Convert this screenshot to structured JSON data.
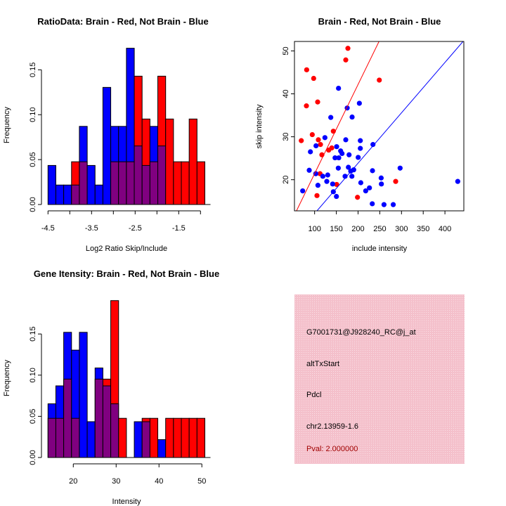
{
  "colors": {
    "blue": "#0000ff",
    "red": "#ff0000",
    "overlap": "#800080",
    "panel": "#f6c4cf",
    "pval": "#a00000"
  },
  "chart_data": [
    {
      "type": "bar",
      "title": "RatioData: Brain - Red, Not Brain - Blue",
      "xlabel": "Log2 Ratio Skip/Include",
      "ylabel": "Frequency",
      "xlim": [
        -4.5,
        -0.9
      ],
      "ylim": [
        0,
        0.175
      ],
      "xticks": [
        -4.5,
        -4.0,
        -3.5,
        -3.0,
        -2.5,
        -2.0,
        -1.5,
        -1.0
      ],
      "xtick_labels": [
        "-4.5",
        "",
        "-3.5",
        "",
        "-2.5",
        "",
        "-1.5",
        ""
      ],
      "yticks": [
        0,
        0.05,
        0.1,
        0.15
      ],
      "ytick_labels": [
        "0.00",
        "0.05",
        "0.10",
        "0.15"
      ],
      "series": [
        {
          "name": "Not Brain",
          "color": "blue",
          "values": [
            0.0435,
            0.0217,
            0.0217,
            0.0217,
            0.087,
            0.0435,
            0.0217,
            0.1304,
            0.087,
            0.087,
            0.174,
            0.0652,
            0.0435,
            0.087,
            0.0652,
            0,
            0,
            0,
            0,
            0
          ]
        },
        {
          "name": "Brain",
          "color": "red",
          "values": [
            0,
            0,
            0,
            0.0476,
            0.0476,
            0,
            0,
            0,
            0.0476,
            0.0476,
            0.0476,
            0.1429,
            0.0952,
            0.0476,
            0.1429,
            0.0952,
            0.0476,
            0.0476,
            0.0952,
            0.0476
          ]
        }
      ]
    },
    {
      "type": "scatter",
      "title": "Brain - Red, Not Brain - Blue",
      "xlabel": "include intensity",
      "ylabel": "skip intensity",
      "xlim": [
        53.6,
        443.5
      ],
      "ylim": [
        12.75,
        52.2
      ],
      "xticks": [
        100,
        150,
        200,
        250,
        300,
        350,
        400
      ],
      "yticks": [
        20,
        30,
        40,
        50
      ],
      "series": [
        {
          "name": "Brain",
          "color": "red",
          "points": [
            [
              176.6,
              50.6
            ],
            [
              171.7,
              47.9
            ],
            [
              81.7,
              45.6
            ],
            [
              97.8,
              43.6
            ],
            [
              248.9,
              43.2
            ],
            [
              81.1,
              37.2
            ],
            [
              107,
              38.1
            ],
            [
              143.1,
              31.3
            ],
            [
              94.6,
              30.5
            ],
            [
              69.3,
              29.1
            ],
            [
              108.6,
              29.3
            ],
            [
              113.5,
              28.2
            ],
            [
              139.4,
              27.4
            ],
            [
              132.4,
              26.9
            ],
            [
              116.7,
              25.8
            ],
            [
              112.4,
              21.4
            ],
            [
              105.4,
              16.3
            ],
            [
              150.7,
              18.9
            ],
            [
              198.7,
              15.9
            ],
            [
              286.6,
              19.6
            ]
          ]
        },
        {
          "name": "Not Brain",
          "color": "blue",
          "points": [
            [
              155,
              41.3
            ],
            [
              203,
              37.8
            ],
            [
              175,
              36.7
            ],
            [
              137.2,
              34.5
            ],
            [
              186.3,
              34.6
            ],
            [
              123.7,
              29.8
            ],
            [
              171.7,
              29.3
            ],
            [
              205.2,
              29.1
            ],
            [
              234.3,
              28.2
            ],
            [
              103.2,
              27.9
            ],
            [
              150.7,
              27.7
            ],
            [
              205.2,
              27.3
            ],
            [
              90.3,
              26.5
            ],
            [
              159.9,
              26.7
            ],
            [
              163.1,
              26.1
            ],
            [
              179.3,
              25.8
            ],
            [
              147,
              25.1
            ],
            [
              155.6,
              25.1
            ],
            [
              200.3,
              25.2
            ],
            [
              154.5,
              22.7
            ],
            [
              177.7,
              22.9
            ],
            [
              87.6,
              22.2
            ],
            [
              183.1,
              22
            ],
            [
              190,
              22.3
            ],
            [
              233.2,
              22.1
            ],
            [
              102.7,
              21.4
            ],
            [
              118.9,
              20.8
            ],
            [
              130.2,
              21.1
            ],
            [
              170.1,
              20.8
            ],
            [
              185.8,
              20.8
            ],
            [
              253.2,
              20.4
            ],
            [
              107.6,
              18.7
            ],
            [
              128,
              19.6
            ],
            [
              141.5,
              19
            ],
            [
              206.3,
              19.3
            ],
            [
              253.7,
              19
            ],
            [
              226.2,
              18.1
            ],
            [
              217.6,
              17.4
            ],
            [
              143.1,
              17.2
            ],
            [
              72.5,
              17.4
            ],
            [
              150.2,
              16.1
            ],
            [
              232.7,
              14.4
            ],
            [
              259.7,
              14.2
            ],
            [
              281,
              14.2
            ],
            [
              296.8,
              22.7
            ],
            [
              429.5,
              19.6
            ]
          ]
        }
      ],
      "lines": [
        {
          "color": "red",
          "slope": 0.2076,
          "intercept": 0.66
        },
        {
          "color": "blue",
          "slope": 0.1173,
          "intercept": 0.39
        }
      ]
    },
    {
      "type": "bar",
      "title": "Gene Itensity: Brain - Red, Not Brain - Blue",
      "xlabel": "Intensity",
      "ylabel": "Frequency",
      "xlim": [
        14.1,
        50.7
      ],
      "ylim": [
        0,
        0.19
      ],
      "xticks": [
        20,
        30,
        40,
        50
      ],
      "xtick_labels": [
        "20",
        "30",
        "40",
        "50"
      ],
      "yticks": [
        0,
        0.05,
        0.1,
        0.15
      ],
      "ytick_labels": [
        "0.00",
        "0.05",
        "0.10",
        "0.15"
      ],
      "series": [
        {
          "name": "Not Brain",
          "color": "blue",
          "values": [
            0.0652,
            0.087,
            0.152,
            0.1304,
            0.152,
            0.0435,
            0.1087,
            0.087,
            0.0652,
            0,
            0,
            0.0435,
            0.0435,
            0,
            0.0217,
            0,
            0,
            0,
            0,
            0
          ]
        },
        {
          "name": "Brain",
          "color": "red",
          "values": [
            0.0476,
            0.0476,
            0.0952,
            0.0476,
            0,
            0,
            0.0952,
            0.0952,
            0.1905,
            0.0476,
            0,
            0,
            0.0476,
            0.0476,
            0,
            0.0476,
            0.0476,
            0.0476,
            0.0476,
            0.0476
          ]
        }
      ]
    }
  ],
  "info_panel": {
    "probe": "G7001731@J928240_RC@j_at",
    "event": "altTxStart",
    "gene": "Pdcl",
    "location": "chr2.13959-1.6",
    "pval": "Pval: 2.000000"
  }
}
